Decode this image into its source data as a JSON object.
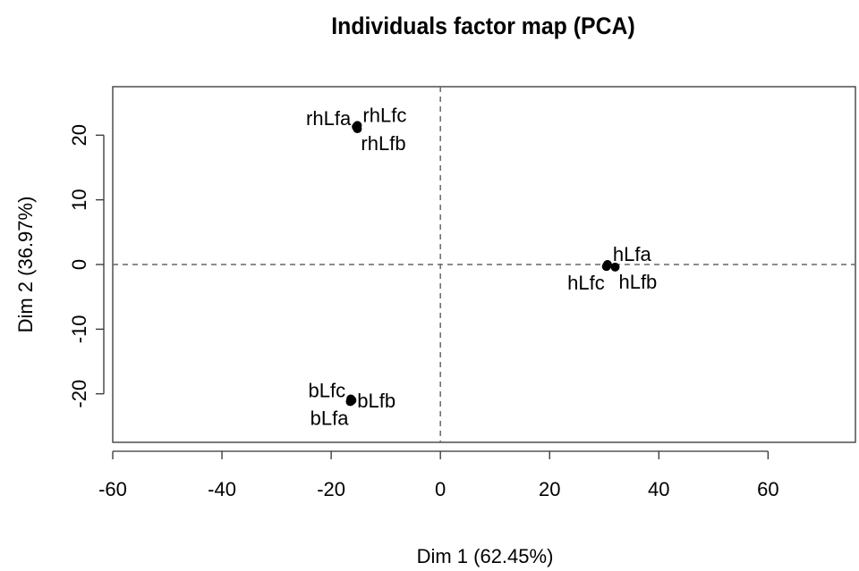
{
  "chart_data": {
    "type": "scatter",
    "title": "Individuals factor map (PCA)",
    "xlabel": "Dim 1 (62.45%)",
    "ylabel": "Dim 2 (36.97%)",
    "xlim": [
      -60,
      76
    ],
    "ylim": [
      -27.5,
      27.5
    ],
    "x_ticks": [
      -60,
      -40,
      -20,
      0,
      20,
      40,
      60
    ],
    "y_ticks": [
      -20,
      -10,
      0,
      10,
      20
    ],
    "grid": false,
    "reference_lines": {
      "x": 0,
      "y": 0,
      "style": "dashed"
    },
    "points": [
      {
        "label": "rhLfa",
        "x": -15.4,
        "y": 21.3,
        "label_pos": "left-up"
      },
      {
        "label": "rhLfc",
        "x": -15.2,
        "y": 21.5,
        "label_pos": "right-up"
      },
      {
        "label": "rhLfb",
        "x": -15.2,
        "y": 21.0,
        "label_pos": "right-down"
      },
      {
        "label": "hLfa",
        "x": 30.6,
        "y": 0.0,
        "label_pos": "right-up"
      },
      {
        "label": "hLfc",
        "x": 30.4,
        "y": -0.3,
        "label_pos": "left-down"
      },
      {
        "label": "hLfb",
        "x": 32.0,
        "y": -0.4,
        "label_pos": "right-down"
      },
      {
        "label": "bLfc",
        "x": -16.4,
        "y": -20.8,
        "label_pos": "left-up"
      },
      {
        "label": "bLfb",
        "x": -16.2,
        "y": -21.0,
        "label_pos": "right"
      },
      {
        "label": "bLfa",
        "x": -16.5,
        "y": -21.2,
        "label_pos": "left-down"
      }
    ],
    "marker_color": "#000000",
    "axis_color": "#333333"
  }
}
